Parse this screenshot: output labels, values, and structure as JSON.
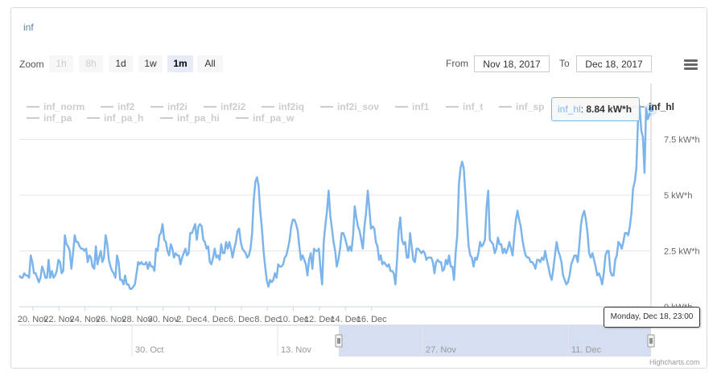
{
  "chart_title": "inf",
  "range_selector": {
    "zoom_label": "Zoom",
    "buttons": [
      {
        "label": "1h",
        "state": "disabled"
      },
      {
        "label": "8h",
        "state": "disabled"
      },
      {
        "label": "1d",
        "state": "normal"
      },
      {
        "label": "1w",
        "state": "normal"
      },
      {
        "label": "1m",
        "state": "active"
      },
      {
        "label": "All",
        "state": "normal"
      }
    ],
    "from_label": "From",
    "from_value": "Nov 18, 2017",
    "to_label": "To",
    "to_value": "Dec 18, 2017"
  },
  "menu_icon": "hamburger-menu-icon",
  "colors": {
    "series": "#7cb5ec",
    "hidden": "#cccccc",
    "navigator_mask": "#d4dcf0"
  },
  "tooltip": {
    "series_name": "inf_hl",
    "value_text": "8.84 kW*h"
  },
  "crosshair_label": "Monday, Dec 18, 23:00",
  "credits": "Highcharts.com",
  "chart_data": {
    "type": "line",
    "title": "inf",
    "xlabel": "",
    "ylabel": "",
    "ylim": [
      0,
      10
    ],
    "y_ticks": [
      0,
      2.5,
      5,
      7.5
    ],
    "y_tick_labels": [
      "0 kW*h",
      "2.5 kW*h",
      "5 kW*h",
      "7.5 kW*h"
    ],
    "x_tick_labels": [
      "20. Nov",
      "22. Nov",
      "24. Nov",
      "26. Nov",
      "28. Nov",
      "30. Nov",
      "2. Dec",
      "4. Dec",
      "6. Dec",
      "8. Dec",
      "10. Dec",
      "12. Dec",
      "14. Dec",
      "16. Dec"
    ],
    "grid": true,
    "legend_position": "top",
    "legend": [
      {
        "name": "inf_norm",
        "visible": false
      },
      {
        "name": "inf2",
        "visible": false
      },
      {
        "name": "inf2i",
        "visible": false
      },
      {
        "name": "inf2i2",
        "visible": false
      },
      {
        "name": "inf2iq",
        "visible": false
      },
      {
        "name": "inf2i_sov",
        "visible": false
      },
      {
        "name": "inf1",
        "visible": false
      },
      {
        "name": "inf_t",
        "visible": false
      },
      {
        "name": "inf_sp",
        "visible": false
      },
      {
        "name": "inf_hl",
        "visible": true
      },
      {
        "name": "inf_pa",
        "visible": false
      },
      {
        "name": "inf_pa_h",
        "visible": false
      },
      {
        "name": "inf_pa_hi",
        "visible": false
      },
      {
        "name": "inf_pa_w",
        "visible": false
      }
    ],
    "series": [
      {
        "name": "inf_hl",
        "x_start": "2017-11-18T23:00",
        "x_step_hours": 3,
        "values": [
          1.4,
          1.3,
          1.3,
          1.5,
          1.4,
          1.4,
          1.3,
          2.3,
          2.0,
          1.5,
          1.5,
          1.3,
          1.1,
          1.3,
          1.8,
          1.6,
          1.3,
          1.3,
          2.1,
          1.3,
          1.6,
          1.3,
          1.4,
          1.6,
          2.1,
          2.0,
          1.5,
          1.6,
          3.2,
          2.8,
          2.7,
          2.5,
          1.7,
          2.4,
          3.2,
          2.9,
          2.9,
          2.7,
          2.6,
          2.6,
          2.5,
          2.6,
          2.0,
          2.3,
          2.2,
          1.8,
          1.7,
          2.7,
          1.9,
          2.2,
          2.5,
          2.0,
          2.2,
          3.2,
          2.8,
          2.1,
          1.8,
          1.6,
          1.5,
          1.3,
          2.3,
          2.0,
          1.2,
          1.2,
          1.0,
          1.4,
          1.0,
          1.0,
          0.8,
          0.8,
          0.9,
          1.0,
          1.5,
          2.0,
          1.9,
          2.0,
          1.9,
          1.9,
          2.0,
          1.7,
          2.0,
          1.8,
          1.8,
          1.6,
          2.6,
          2.5,
          3.2,
          3.3,
          3.7,
          3.0,
          2.9,
          2.5,
          2.3,
          2.8,
          2.6,
          2.2,
          2.4,
          2.3,
          2.3,
          1.9,
          2.2,
          2.4,
          2.6,
          2.3,
          2.4,
          3.3,
          3.3,
          3.5,
          3.7,
          3.0,
          3.6,
          3.7,
          3.6,
          3.0,
          2.9,
          2.6,
          2.7,
          2.0,
          1.9,
          2.2,
          2.6,
          2.2,
          2.3,
          2.1,
          2.8,
          2.4,
          2.4,
          2.9,
          2.6,
          2.9,
          2.6,
          2.2,
          2.6,
          2.9,
          3.4,
          3.5,
          2.9,
          2.6,
          2.5,
          2.4,
          2.2,
          2.3,
          2.6,
          3.3,
          4.8,
          5.6,
          5.8,
          5.4,
          4.3,
          3.5,
          2.5,
          1.8,
          1.2,
          0.9,
          1.2,
          1.1,
          1.2,
          1.5,
          1.3,
          1.9,
          1.8,
          1.8,
          1.9,
          2.2,
          2.3,
          2.6,
          3.0,
          3.6,
          3.9,
          3.9,
          3.7,
          3.4,
          2.7,
          2.1,
          2.3,
          2.1,
          1.9,
          1.4,
          2.1,
          2.4,
          1.7,
          2.6,
          2.5,
          2.5,
          2.6,
          1.7,
          1.0,
          2.9,
          3.7,
          4.3,
          5.2,
          4.1,
          3.5,
          2.9,
          2.5,
          1.8,
          2.1,
          2.6,
          3.3,
          3.3,
          3.1,
          2.8,
          2.5,
          2.7,
          2.5,
          3.2,
          4.5,
          4.0,
          3.6,
          3.4,
          3.0,
          2.6,
          3.6,
          4.2,
          5.2,
          4.4,
          3.5,
          3.6,
          3.5,
          2.9,
          2.7,
          2.1,
          2.3,
          1.9,
          2.0,
          1.9,
          1.8,
          1.9,
          1.6,
          1.6,
          1.5,
          1.0,
          2.1,
          3.4,
          4.0,
          3.0,
          2.8,
          2.9,
          2.2,
          2.2,
          3.3,
          2.7,
          2.1,
          2.0,
          2.6,
          2.6,
          2.5,
          2.4,
          2.5,
          2.4,
          2.1,
          2.2,
          2.2,
          2.2,
          2.0,
          1.5,
          2.0,
          2.1,
          2.0,
          2.0,
          1.6,
          1.7,
          2.1,
          1.9,
          2.3,
          1.8,
          1.8,
          1.2,
          2.4,
          3.2,
          5.5,
          6.2,
          6.5,
          6.2,
          5.0,
          3.8,
          2.7,
          2.3,
          2.2,
          1.8,
          2.2,
          2.1,
          2.4,
          2.9,
          2.7,
          2.8,
          3.0,
          4.5,
          5.2,
          3.0,
          2.9,
          2.8,
          2.4,
          2.6,
          3.1,
          2.8,
          2.8,
          2.4,
          2.6,
          2.4,
          2.6,
          2.9,
          2.6,
          2.3,
          3.2,
          3.9,
          4.3,
          3.9,
          3.6,
          3.0,
          2.6,
          2.3,
          2.2,
          2.2,
          2.0,
          2.0,
          1.9,
          1.7,
          2.1,
          2.1,
          2.0,
          2.2,
          2.1,
          2.5,
          2.1,
          1.8,
          1.4,
          1.2,
          1.7,
          2.3,
          2.9,
          2.5,
          2.3,
          2.0,
          1.4,
          1.2,
          1.0,
          1.1,
          1.4,
          1.9,
          2.1,
          2.3,
          2.3,
          2.0,
          2.8,
          3.7,
          4.1,
          4.3,
          3.9,
          3.3,
          2.4,
          2.2,
          2.4,
          2.1,
          1.8,
          1.4,
          1.5,
          1.3,
          1.0,
          1.5,
          2.3,
          2.5,
          2.5,
          1.6,
          1.4,
          1.4,
          2.1,
          2.3,
          2.9,
          2.8,
          2.6,
          2.9,
          3.3,
          3.3,
          3.2,
          3.6,
          4.2,
          5.3,
          5.6,
          6.2,
          8.3,
          9.0,
          7.9,
          7.6,
          6.0,
          8.9,
          8.4,
          8.6,
          8.84
        ]
      }
    ],
    "navigator_x_labels": [
      "30. Oct",
      "13. Nov",
      "27. Nov",
      "11. Dec"
    ]
  }
}
